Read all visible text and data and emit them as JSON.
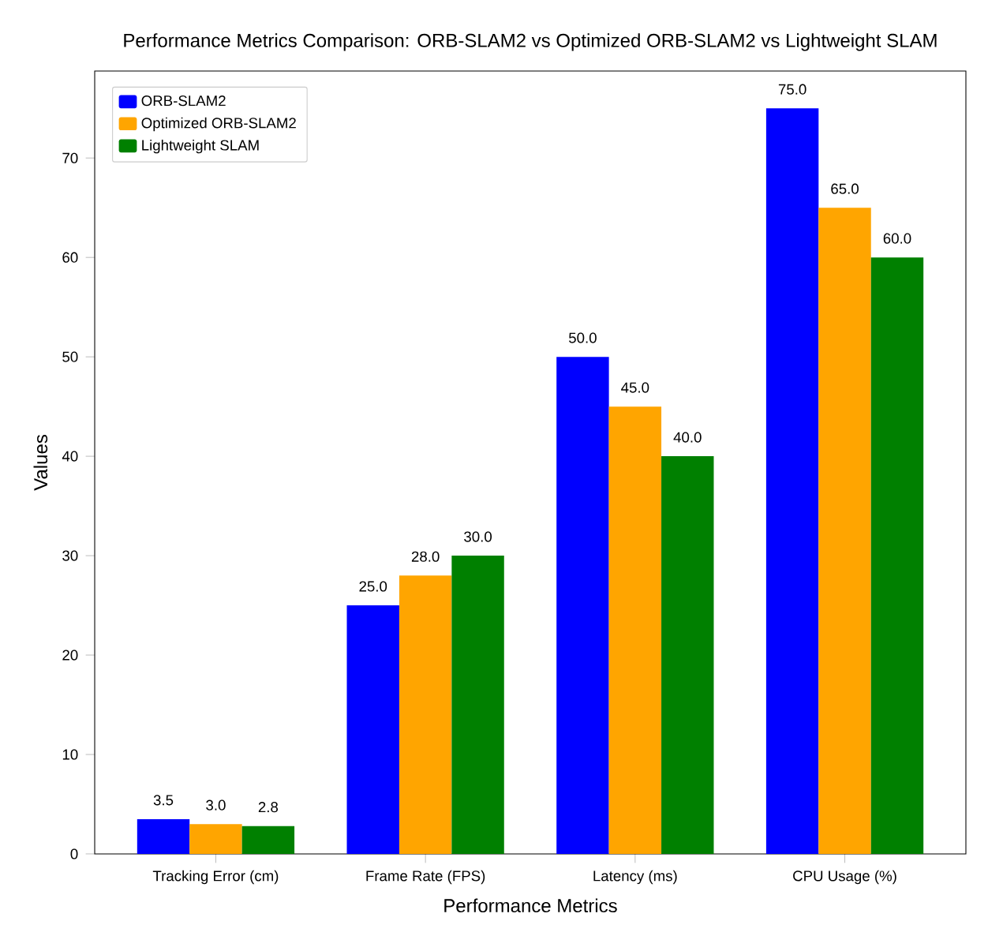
{
  "chart_data": {
    "type": "bar",
    "title": "Performance Metrics Comparison: ORB-SLAM2 vs Optimized ORB-SLAM2 vs Lightweight SLAM",
    "xlabel": "Performance Metrics",
    "ylabel": "Values",
    "categories": [
      "Tracking Error (cm)",
      "Frame Rate (FPS)",
      "Latency (ms)",
      "CPU Usage (%)"
    ],
    "series": [
      {
        "name": "ORB-SLAM2",
        "color": "#0000ff",
        "values": [
          3.5,
          25.0,
          50.0,
          75.0
        ],
        "value_labels": [
          "3.5",
          "25.0",
          "50.0",
          "75.0"
        ]
      },
      {
        "name": "Optimized ORB-SLAM2",
        "color": "#ffa500",
        "values": [
          3.0,
          28.0,
          45.0,
          65.0
        ],
        "value_labels": [
          "3.0",
          "28.0",
          "45.0",
          "65.0"
        ]
      },
      {
        "name": "Lightweight SLAM",
        "color": "#008000",
        "values": [
          2.8,
          30.0,
          40.0,
          60.0
        ],
        "value_labels": [
          "2.8",
          "30.0",
          "40.0",
          "60.0"
        ]
      }
    ],
    "ylim": [
      0,
      78.75
    ],
    "yticks": [
      0,
      10,
      20,
      30,
      40,
      50,
      60,
      70
    ],
    "legend": "top left"
  }
}
